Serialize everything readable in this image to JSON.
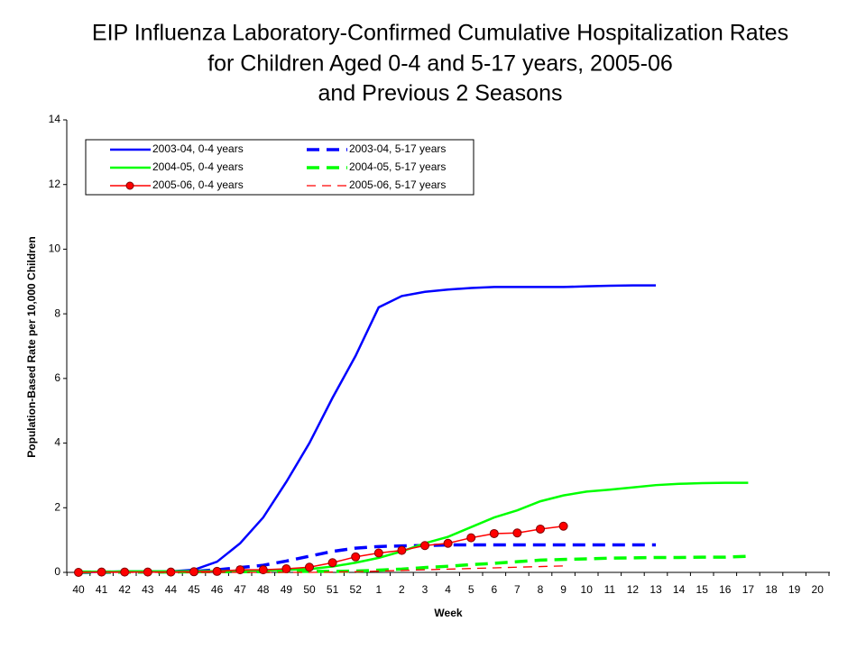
{
  "chart_data": {
    "type": "line",
    "title": [
      "EIP Influenza Laboratory-Confirmed Cumulative Hospitalization Rates",
      "for Children Aged 0-4 and 5-17 years, 2005-06",
      "and Previous 2 Seasons"
    ],
    "x_label": "Week",
    "y_label": "Population-Based Rate per 10,000 Children",
    "categories": [
      "40",
      "41",
      "42",
      "43",
      "44",
      "45",
      "46",
      "47",
      "48",
      "49",
      "50",
      "51",
      "52",
      "1",
      "2",
      "3",
      "4",
      "5",
      "6",
      "7",
      "8",
      "9",
      "10",
      "11",
      "12",
      "13",
      "14",
      "15",
      "16",
      "17",
      "18",
      "19",
      "20"
    ],
    "ylim": [
      0,
      14
    ],
    "yticks": [
      0,
      2,
      4,
      6,
      8,
      10,
      12,
      14
    ],
    "grid": false,
    "legend": "top-left",
    "series": [
      {
        "name": "2003-04, 0-4 years",
        "color": "#0000ff",
        "line_style": "solid",
        "marker": null,
        "values": [
          0,
          0.02,
          0.03,
          0.03,
          0.03,
          0.08,
          0.33,
          0.9,
          1.7,
          2.8,
          4.0,
          5.4,
          6.7,
          8.2,
          8.55,
          8.68,
          8.75,
          8.8,
          8.83,
          8.83,
          8.83,
          8.83,
          8.85,
          8.87,
          8.88,
          8.88,
          null,
          null,
          null,
          null,
          null,
          null,
          null
        ]
      },
      {
        "name": "2003-04, 5-17 years",
        "color": "#0000ff",
        "line_style": "dashed",
        "marker": null,
        "values": [
          0,
          0,
          0.01,
          0.01,
          0.02,
          0.03,
          0.08,
          0.15,
          0.22,
          0.35,
          0.5,
          0.65,
          0.75,
          0.8,
          0.82,
          0.83,
          0.85,
          0.85,
          0.85,
          0.85,
          0.85,
          0.85,
          0.85,
          0.85,
          0.85,
          0.85,
          null,
          null,
          null,
          null,
          null,
          null,
          null
        ]
      },
      {
        "name": "2004-05, 0-4 years",
        "color": "#00ff00",
        "line_style": "solid",
        "marker": null,
        "values": [
          0.02,
          0.02,
          0.03,
          0.03,
          0.03,
          0.04,
          0.04,
          0.05,
          0.06,
          0.08,
          0.1,
          0.18,
          0.3,
          0.45,
          0.65,
          0.9,
          1.1,
          1.4,
          1.7,
          1.92,
          2.2,
          2.38,
          2.5,
          2.56,
          2.63,
          2.7,
          2.74,
          2.76,
          2.77,
          2.77,
          null,
          null,
          null
        ]
      },
      {
        "name": "2004-05, 5-17 years",
        "color": "#00ff00",
        "line_style": "dashed",
        "marker": null,
        "values": [
          0.01,
          0.01,
          0.01,
          0.01,
          0.01,
          0.02,
          0.02,
          0.02,
          0.02,
          0.03,
          0.03,
          0.03,
          0.04,
          0.07,
          0.1,
          0.15,
          0.19,
          0.24,
          0.28,
          0.33,
          0.38,
          0.4,
          0.42,
          0.44,
          0.45,
          0.46,
          0.46,
          0.47,
          0.47,
          0.5,
          null,
          null,
          null
        ]
      },
      {
        "name": "2005-06, 0-4 years",
        "color": "#ff0000",
        "line_style": "solid",
        "marker": "circle",
        "values": [
          0,
          0.01,
          0.01,
          0.01,
          0.01,
          0.02,
          0.03,
          0.08,
          0.08,
          0.11,
          0.16,
          0.3,
          0.48,
          0.6,
          0.68,
          0.83,
          0.9,
          1.07,
          1.2,
          1.22,
          1.34,
          1.43,
          null,
          null,
          null,
          null,
          null,
          null,
          null,
          null,
          null,
          null,
          null
        ]
      },
      {
        "name": "2005-06, 5-17 years",
        "color": "#ff0000",
        "line_style": "dashed",
        "marker": null,
        "values": [
          0,
          0,
          0,
          0,
          0,
          0,
          0,
          0,
          0,
          0,
          0,
          0.01,
          0.02,
          0.04,
          0.06,
          0.08,
          0.1,
          0.12,
          0.14,
          0.16,
          0.18,
          0.2,
          null,
          null,
          null,
          null,
          null,
          null,
          null,
          null,
          null,
          null,
          null
        ]
      }
    ]
  }
}
